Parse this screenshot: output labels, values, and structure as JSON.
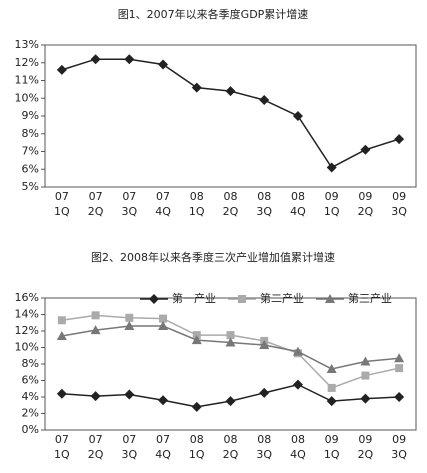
{
  "chart_data": [
    {
      "type": "line",
      "title": "图1、2007年以来各季度GDP累计增速",
      "categories": [
        "07\n1Q",
        "07\n2Q",
        "07\n3Q",
        "07\n4Q",
        "08\n1Q",
        "08\n2Q",
        "08\n3Q",
        "08\n4Q",
        "09\n1Q",
        "09\n2Q",
        "09\n3Q"
      ],
      "values": [
        11.6,
        12.2,
        12.2,
        11.9,
        10.6,
        10.4,
        9.9,
        9.0,
        6.1,
        7.1,
        7.7
      ],
      "color": "#222222",
      "marker": "diamond",
      "ylim": [
        5,
        13
      ],
      "yticks": [
        {
          "value": 5,
          "label": "5%"
        },
        {
          "value": 6,
          "label": "6%"
        },
        {
          "value": 7,
          "label": "7%"
        },
        {
          "value": 8,
          "label": "8%"
        },
        {
          "value": 9,
          "label": "9%"
        },
        {
          "value": 10,
          "label": "10%"
        },
        {
          "value": 11,
          "label": "11%"
        },
        {
          "value": 12,
          "label": "12%"
        },
        {
          "value": 13,
          "label": "13%"
        }
      ]
    },
    {
      "type": "line",
      "title": "图2、2008年以来各季度三次产业增加值累计增速",
      "categories": [
        "07\n1Q",
        "07\n2Q",
        "07\n3Q",
        "07\n4Q",
        "08\n1Q",
        "08\n2Q",
        "08\n3Q",
        "08\n4Q",
        "09\n1Q",
        "09\n2Q",
        "09\n3Q"
      ],
      "series": [
        {
          "name": "第一产业",
          "color": "#222222",
          "marker": "diamond",
          "values": [
            4.4,
            4.1,
            4.3,
            3.6,
            2.8,
            3.5,
            4.5,
            5.5,
            3.5,
            3.8,
            4.0
          ]
        },
        {
          "name": "第二产业",
          "color": "#aaaaaa",
          "marker": "square",
          "values": [
            13.3,
            13.9,
            13.6,
            13.5,
            11.5,
            11.5,
            10.8,
            9.3,
            5.1,
            6.6,
            7.5
          ]
        },
        {
          "name": "第三产业",
          "color": "#777777",
          "marker": "triangle",
          "values": [
            11.4,
            12.1,
            12.6,
            12.6,
            10.9,
            10.6,
            10.3,
            9.5,
            7.4,
            8.3,
            8.7
          ]
        }
      ],
      "legend": "top",
      "ylim": [
        0,
        16
      ],
      "yticks": [
        {
          "value": 0,
          "label": "0%"
        },
        {
          "value": 2,
          "label": "2%"
        },
        {
          "value": 4,
          "label": "4%"
        },
        {
          "value": 6,
          "label": "6%"
        },
        {
          "value": 8,
          "label": "8%"
        },
        {
          "value": 10,
          "label": "10%"
        },
        {
          "value": 12,
          "label": "12%"
        },
        {
          "value": 14,
          "label": "14%"
        },
        {
          "value": 16,
          "label": "16%"
        }
      ]
    }
  ]
}
